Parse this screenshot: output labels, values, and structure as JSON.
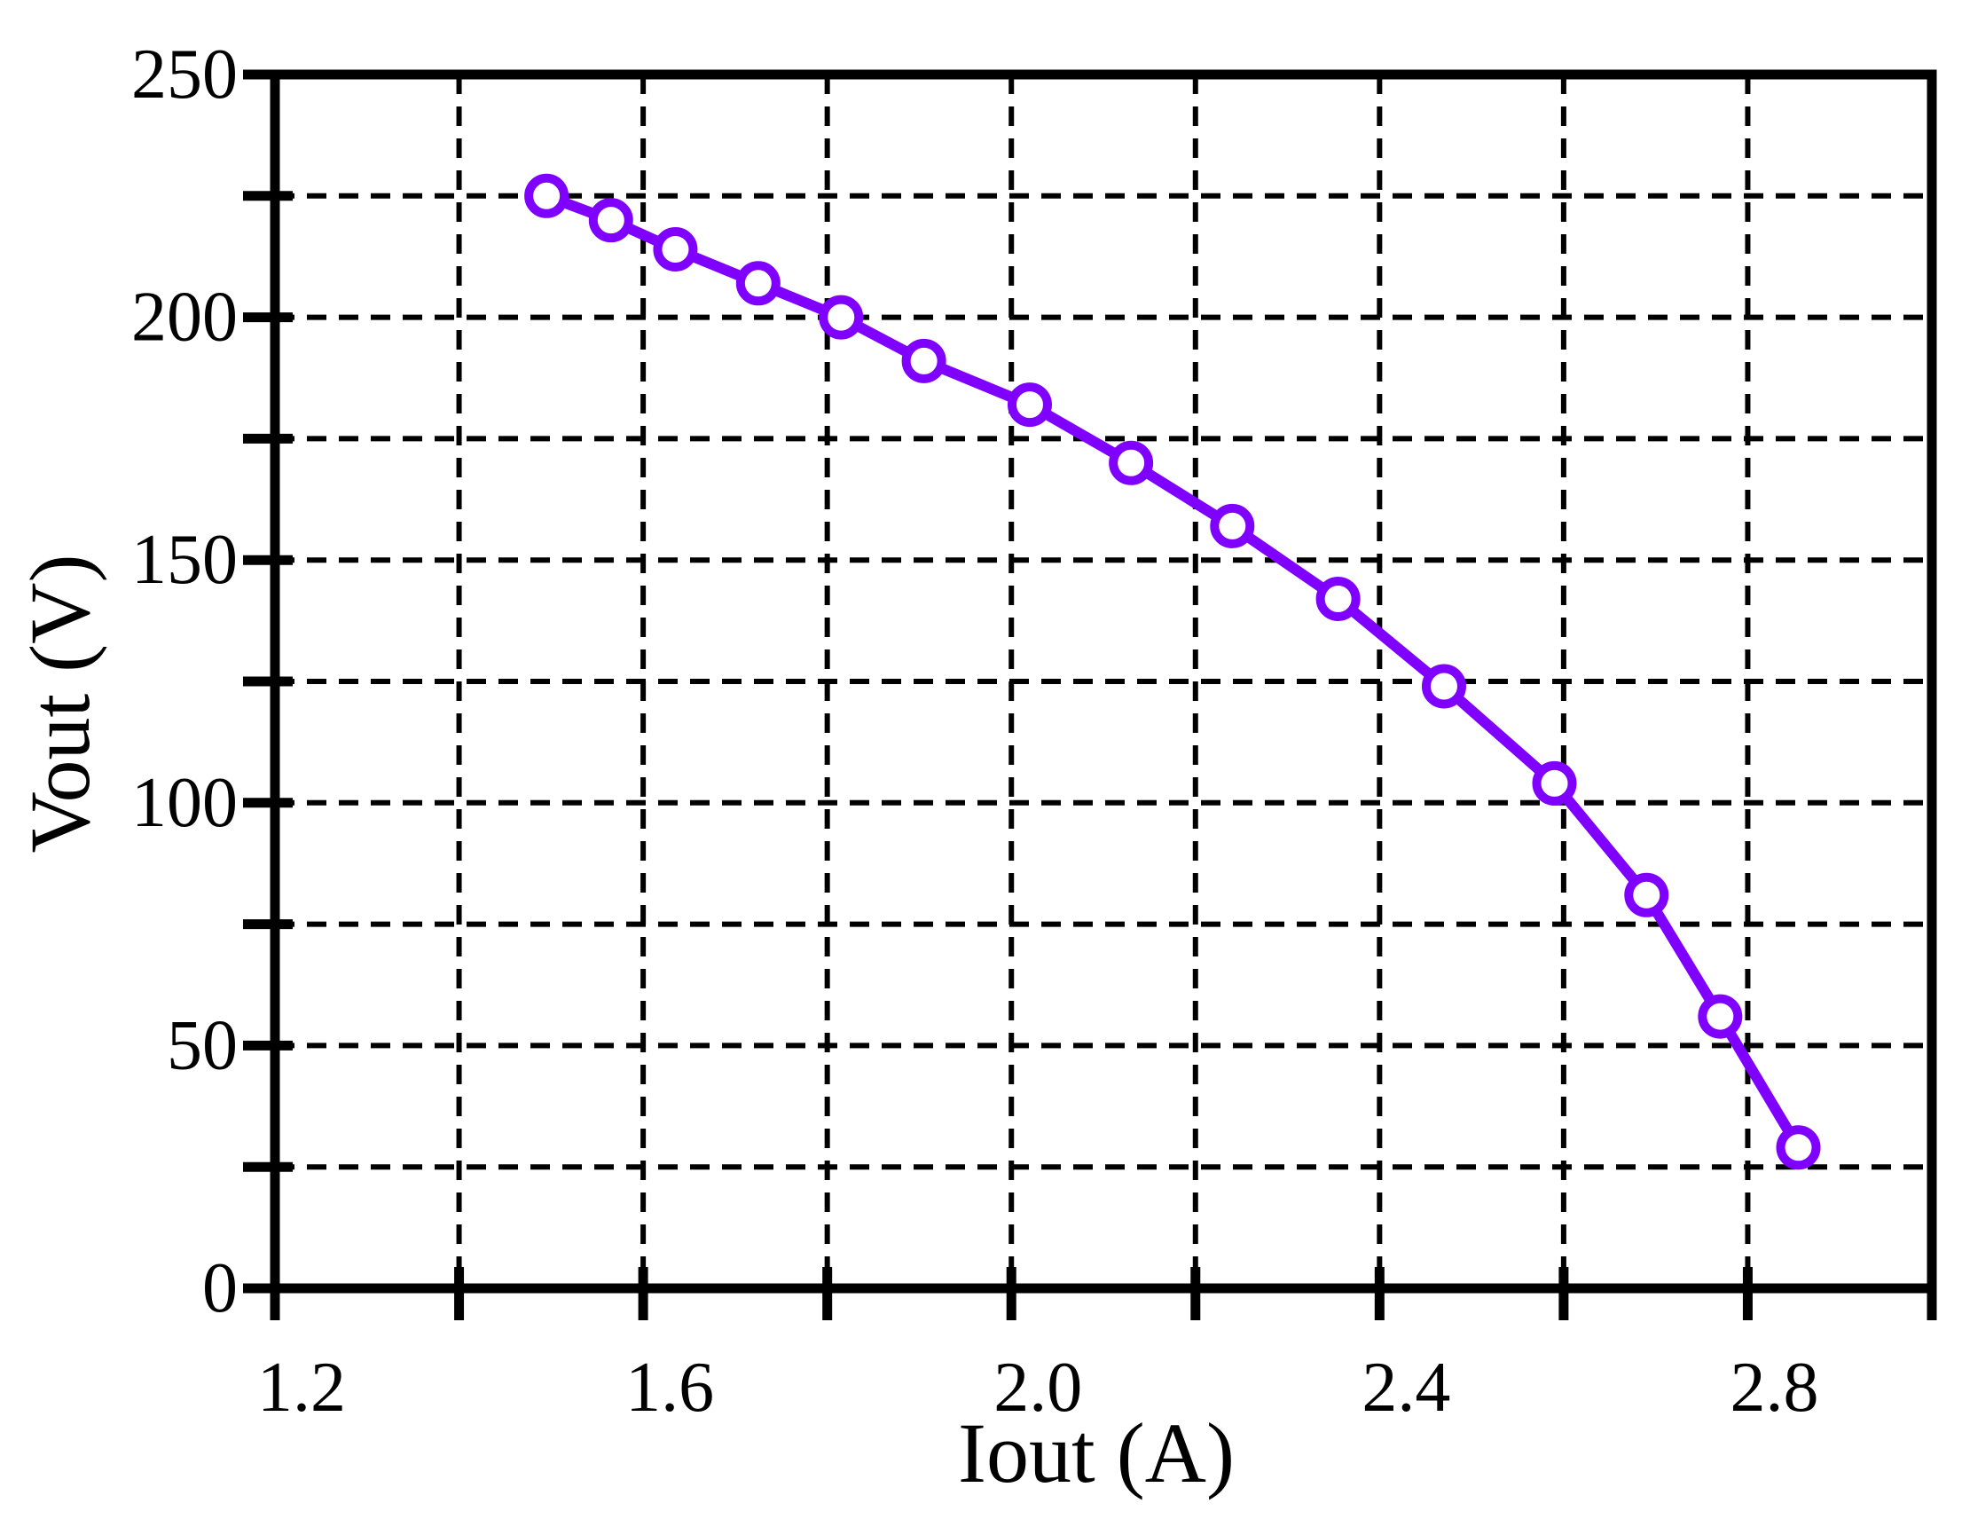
{
  "chart_data": {
    "type": "line",
    "xlabel": "Iout (A)",
    "ylabel": "Vout (V)",
    "xlim": [
      1.2,
      3.0
    ],
    "ylim": [
      0,
      250
    ],
    "x_ticks": [
      1.2,
      1.6,
      2.0,
      2.4,
      2.8
    ],
    "x_tick_labels": [
      "1.2",
      "1.6",
      "2.0",
      "2.4",
      "2.8"
    ],
    "x_minor_ticks": [
      1.4,
      1.8,
      2.2,
      2.6,
      3.0
    ],
    "y_ticks": [
      0,
      50,
      100,
      150,
      200,
      250
    ],
    "y_tick_labels": [
      "0",
      "50",
      "100",
      "150",
      "200",
      "250"
    ],
    "y_minor_ticks": [
      25,
      75,
      125,
      175,
      225
    ],
    "grid": true,
    "grid_style": "dashed",
    "series": [
      {
        "color": "#8000ff",
        "marker": "open-circle",
        "x": [
          1.495,
          1.565,
          1.635,
          1.725,
          1.815,
          1.905,
          2.02,
          2.13,
          2.24,
          2.355,
          2.47,
          2.59,
          2.69,
          2.77,
          2.855
        ],
        "y": [
          225,
          220,
          214,
          207,
          200,
          191,
          182,
          170,
          157,
          142,
          124,
          104,
          81,
          56,
          29
        ]
      }
    ]
  }
}
